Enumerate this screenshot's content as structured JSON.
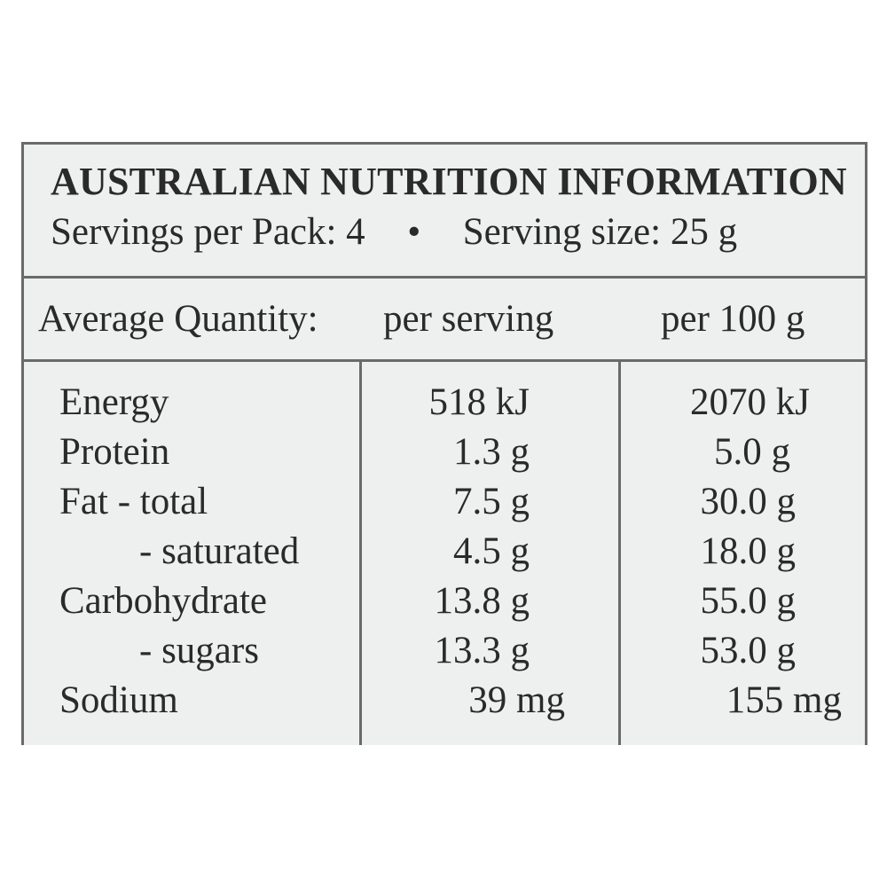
{
  "title": "AUSTRALIAN NUTRITION INFORMATION",
  "servings": {
    "per_pack": "Servings per Pack: 4",
    "separator": "•",
    "size": "Serving size: 25 g"
  },
  "header": {
    "label": "Average Quantity:",
    "per_serving": "per serving",
    "per_100g": "per 100 g"
  },
  "rows": [
    {
      "name": "Energy",
      "per_serving": "518 kJ",
      "per_100g": "2070 kJ"
    },
    {
      "name": "Protein",
      "per_serving": "1.3 g",
      "per_100g": "5.0 g"
    },
    {
      "name": "Fat - total",
      "per_serving": "7.5 g",
      "per_100g": "30.0 g"
    },
    {
      "name": "- saturated",
      "per_serving": "4.5 g",
      "per_100g": "18.0 g"
    },
    {
      "name": "Carbohydrate",
      "per_serving": "13.8 g",
      "per_100g": "55.0 g"
    },
    {
      "name": "- sugars",
      "per_serving": "13.3 g",
      "per_100g": "53.0 g"
    },
    {
      "name": "Sodium",
      "per_serving": "39 mg",
      "per_100g": "155 mg"
    }
  ],
  "colors": {
    "panel_background": "#eef0ef",
    "rule": "#6a6a6a",
    "text": "#2a2a2a"
  }
}
